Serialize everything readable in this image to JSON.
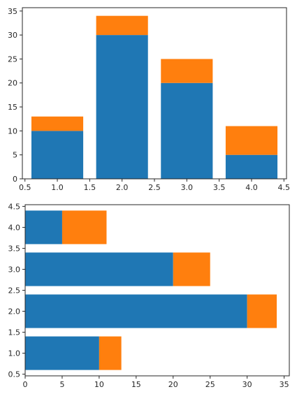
{
  "chart_data": [
    {
      "type": "bar",
      "orientation": "vertical",
      "stacked": true,
      "x": [
        1.0,
        2.0,
        3.0,
        4.0
      ],
      "bar_width": 0.8,
      "series": [
        {
          "values": [
            10,
            30,
            20,
            5
          ],
          "color": "#1f77b4"
        },
        {
          "values": [
            3,
            4,
            5,
            6
          ],
          "color": "#ff7f0e"
        }
      ],
      "xlim": [
        0.46,
        4.54
      ],
      "ylim": [
        0,
        35.7
      ],
      "xticks": [
        "0.5",
        "1.0",
        "1.5",
        "2.0",
        "2.5",
        "3.0",
        "3.5",
        "4.0",
        "4.5"
      ],
      "yticks": [
        "0",
        "5",
        "10",
        "15",
        "20",
        "25",
        "30",
        "35"
      ],
      "grid": false,
      "title": "",
      "xlabel": "",
      "ylabel": ""
    },
    {
      "type": "bar",
      "orientation": "horizontal",
      "stacked": true,
      "y": [
        1.0,
        2.0,
        3.0,
        4.0
      ],
      "bar_height": 0.8,
      "series": [
        {
          "values": [
            10,
            30,
            20,
            5
          ],
          "color": "#1f77b4"
        },
        {
          "values": [
            3,
            4,
            5,
            6
          ],
          "color": "#ff7f0e"
        }
      ],
      "xlim": [
        0,
        35.7
      ],
      "ylim": [
        0.46,
        4.54
      ],
      "xticks": [
        "0",
        "5",
        "10",
        "15",
        "20",
        "25",
        "30",
        "35"
      ],
      "yticks": [
        "0.5",
        "1.0",
        "1.5",
        "2.0",
        "2.5",
        "3.0",
        "3.5",
        "4.0",
        "4.5"
      ],
      "grid": false,
      "title": "",
      "xlabel": "",
      "ylabel": ""
    }
  ]
}
